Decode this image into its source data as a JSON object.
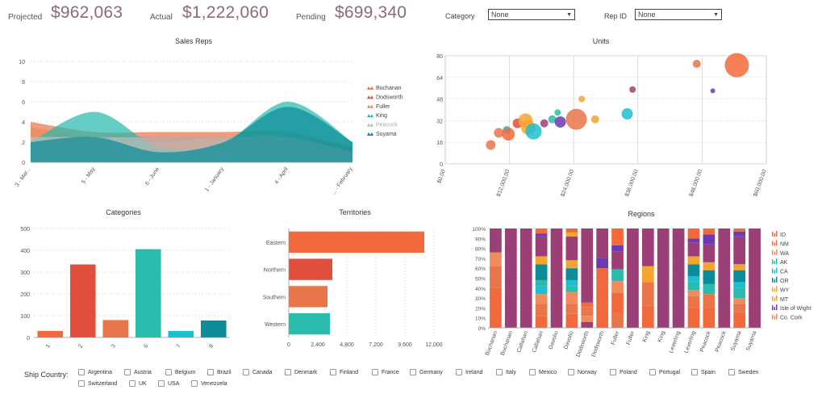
{
  "kpis": {
    "projected_label": "Projected",
    "projected_value": "$962,063",
    "actual_label": "Actual",
    "actual_value": "$1,222,060",
    "pending_label": "Pending",
    "pending_value": "$699,340"
  },
  "filters": {
    "category_label": "Category",
    "category_value": "None",
    "rep_label": "Rep ID",
    "rep_value": "None"
  },
  "colors": {
    "orange": "#f26a3b",
    "red": "#e04e3c",
    "coral": "#e8764a",
    "teal": "#2abbad",
    "cyan": "#1bbfd1",
    "darkteal": "#0c8c98",
    "plum": "#9b3f76",
    "gold": "#f6a430",
    "purple": "#6c3ab2",
    "salmon": "#f08b5e",
    "lightteal": "#55ccc1"
  },
  "chart_data": [
    {
      "type": "area",
      "title": "Sales Reps",
      "categories": [
        "3 - Mar...",
        "5 - May",
        "6 - June",
        "1 - January",
        "4 - April",
        "... - February"
      ],
      "ylim": [
        0,
        10
      ],
      "yticks": [
        0,
        2,
        4,
        6,
        8,
        10
      ],
      "series": [
        {
          "name": "Buchanan",
          "values": [
            4.0,
            3.0,
            3.0,
            3.0,
            3.0,
            1.5
          ],
          "color": "#e8764a"
        },
        {
          "name": "Dodsworth",
          "values": [
            1.5,
            2.5,
            2.5,
            2.5,
            2.5,
            1.5
          ],
          "color": "#e04e3c"
        },
        {
          "name": "Fuller",
          "values": [
            3.5,
            2.5,
            2.0,
            2.5,
            2.5,
            1.5
          ],
          "color": "#f08b5e"
        },
        {
          "name": "King",
          "values": [
            2.0,
            5.0,
            1.5,
            2.0,
            6.0,
            2.0
          ],
          "color": "#2abbad"
        },
        {
          "name": "Peacock",
          "values": [
            2.5,
            2.5,
            2.5,
            2.5,
            2.5,
            1.0
          ],
          "color": "#b8bfbd"
        },
        {
          "name": "Suyama",
          "values": [
            2.0,
            2.5,
            1.0,
            2.0,
            5.5,
            2.0
          ],
          "color": "#0c8c98"
        }
      ]
    },
    {
      "type": "scatter",
      "title": "Units",
      "xlim": [
        0,
        60000
      ],
      "ylim": [
        0,
        80
      ],
      "xticks": [
        "$0.00",
        "$12,000.00",
        "$24,000.00",
        "$36,000.00",
        "$48,000.00",
        "$60,000.00"
      ],
      "xtick_values": [
        0,
        12000,
        24000,
        36000,
        48000,
        60000
      ],
      "yticks": [
        0,
        16,
        32,
        48,
        64,
        80
      ],
      "points": [
        {
          "x": 8500,
          "y": 14,
          "r": 6,
          "color": "#e8764a"
        },
        {
          "x": 10000,
          "y": 23,
          "r": 6,
          "color": "#e8764a"
        },
        {
          "x": 11500,
          "y": 25,
          "r": 5,
          "color": "#2abbad"
        },
        {
          "x": 11800,
          "y": 22,
          "r": 8,
          "color": "#f26a3b"
        },
        {
          "x": 13500,
          "y": 30,
          "r": 6,
          "color": "#e04e3c"
        },
        {
          "x": 15000,
          "y": 32,
          "r": 9,
          "color": "#f6a430"
        },
        {
          "x": 15500,
          "y": 27,
          "r": 9,
          "color": "#f6a430"
        },
        {
          "x": 16500,
          "y": 24,
          "r": 10,
          "color": "#1bbfd1"
        },
        {
          "x": 18500,
          "y": 30,
          "r": 5,
          "color": "#9b3f76"
        },
        {
          "x": 20000,
          "y": 33,
          "r": 5,
          "color": "#2abbad"
        },
        {
          "x": 21000,
          "y": 38,
          "r": 4,
          "color": "#2abbad"
        },
        {
          "x": 21500,
          "y": 31,
          "r": 7,
          "color": "#6c3ab2"
        },
        {
          "x": 24500,
          "y": 33,
          "r": 13,
          "color": "#e8764a"
        },
        {
          "x": 25500,
          "y": 48,
          "r": 4,
          "color": "#f6a430"
        },
        {
          "x": 28000,
          "y": 33,
          "r": 5,
          "color": "#f6a430"
        },
        {
          "x": 34000,
          "y": 37,
          "r": 7,
          "color": "#1bbfd1"
        },
        {
          "x": 35000,
          "y": 55,
          "r": 4,
          "color": "#9b3f76"
        },
        {
          "x": 47000,
          "y": 74,
          "r": 5,
          "color": "#e8764a"
        },
        {
          "x": 50000,
          "y": 54,
          "r": 3,
          "color": "#6c3ab2"
        },
        {
          "x": 54500,
          "y": 73,
          "r": 15,
          "color": "#f26a3b"
        }
      ]
    },
    {
      "type": "bar",
      "title": "Categories",
      "categories": [
        "1",
        "2",
        "3",
        "6",
        "7",
        "8"
      ],
      "values": [
        30,
        335,
        80,
        405,
        30,
        78
      ],
      "colors": [
        "#f26a3b",
        "#e04e3c",
        "#e8764a",
        "#2abbad",
        "#1bbfd1",
        "#0c8c98"
      ],
      "ylim": [
        0,
        500
      ],
      "yticks": [
        0,
        100,
        200,
        300,
        400,
        500
      ]
    },
    {
      "type": "bar",
      "orientation": "horizontal",
      "title": "Territories",
      "categories": [
        "Eastern",
        "Northern",
        "Southern",
        "Western"
      ],
      "values": [
        11200,
        3600,
        3200,
        3400
      ],
      "colors": [
        "#f26a3b",
        "#e04e3c",
        "#e8764a",
        "#2abbad"
      ],
      "xlim": [
        0,
        12000
      ],
      "xticks": [
        "0",
        "2,400",
        "4,800",
        "7,200",
        "9,600",
        "12,000"
      ]
    },
    {
      "type": "bar",
      "stacked": "percent",
      "title": "Regions",
      "categories": [
        "Buchanan",
        "Buchanan",
        "Callahan",
        "Callahan",
        "Davolio",
        "Davolio",
        "Dodsworth",
        "Dodsworth",
        "Fuller",
        "Fuller",
        "King",
        "King",
        "Leverling",
        "Leverling",
        "Peacock",
        "Peacock",
        "Suyama",
        "Suyama"
      ],
      "yticks": [
        "0%",
        "10%",
        "20%",
        "30%",
        "40%",
        "50%",
        "60%",
        "70%",
        "80%",
        "90%",
        "100%"
      ],
      "legend": [
        {
          "name": "ID",
          "color": "#f26a3b"
        },
        {
          "name": "NM",
          "color": "#e8764a"
        },
        {
          "name": "WA",
          "color": "#f08b5e"
        },
        {
          "name": "AK",
          "color": "#2abbad"
        },
        {
          "name": "CA",
          "color": "#1bbfd1"
        },
        {
          "name": "OR",
          "color": "#0c8c98"
        },
        {
          "name": "WY",
          "color": "#f6a430"
        },
        {
          "name": "MT",
          "color": "#f6a430"
        },
        {
          "name": "Isle of Wight",
          "color": "#6c3ab2"
        },
        {
          "name": "Co. Cork",
          "color": "#f08b5e"
        }
      ],
      "stacks": [
        [
          {
            "c": "#f26a3b",
            "v": 40
          },
          {
            "c": "#e8764a",
            "v": 22
          },
          {
            "c": "#f08b5e",
            "v": 14
          },
          {
            "c": "#9b3f76",
            "v": 24
          }
        ],
        [
          {
            "c": "#9b3f76",
            "v": 100
          }
        ],
        [
          {
            "c": "#9b3f76",
            "v": 100
          }
        ],
        [
          {
            "c": "#f26a3b",
            "v": 12
          },
          {
            "c": "#e8764a",
            "v": 12
          },
          {
            "c": "#f08b5e",
            "v": 10
          },
          {
            "c": "#1bbfd1",
            "v": 8
          },
          {
            "c": "#2abbad",
            "v": 6
          },
          {
            "c": "#0c8c98",
            "v": 16
          },
          {
            "c": "#f6a430",
            "v": 8
          },
          {
            "c": "#9b3f76",
            "v": 20
          },
          {
            "c": "#6c3ab2",
            "v": 3
          },
          {
            "c": "#f26a3b",
            "v": 5
          }
        ],
        [
          {
            "c": "#9b3f76",
            "v": 100
          }
        ],
        [
          {
            "c": "#f26a3b",
            "v": 14
          },
          {
            "c": "#e8764a",
            "v": 10
          },
          {
            "c": "#f08b5e",
            "v": 12
          },
          {
            "c": "#2abbad",
            "v": 6
          },
          {
            "c": "#1bbfd1",
            "v": 6
          },
          {
            "c": "#0c8c98",
            "v": 12
          },
          {
            "c": "#f6a430",
            "v": 8
          },
          {
            "c": "#9b3f76",
            "v": 24
          },
          {
            "c": "#f6a430",
            "v": 4
          },
          {
            "c": "#f26a3b",
            "v": 4
          }
        ],
        [
          {
            "c": "#9b3f76",
            "v": 8
          },
          {
            "c": "#f08b5e",
            "v": 8
          },
          {
            "c": "#e8764a",
            "v": 12
          },
          {
            "c": "#f26a3b",
            "v": 6
          },
          {
            "c": "#9b3f76",
            "v": 100
          }
        ],
        [
          {
            "c": "#f26a3b",
            "v": 60
          },
          {
            "c": "#6c3ab2",
            "v": 10
          },
          {
            "c": "#9b3f76",
            "v": 30
          }
        ],
        [
          {
            "c": "#e8764a",
            "v": 15
          },
          {
            "c": "#f26a3b",
            "v": 20
          },
          {
            "c": "#f08b5e",
            "v": 12
          },
          {
            "c": "#2abbad",
            "v": 12
          },
          {
            "c": "#9b3f76",
            "v": 18
          },
          {
            "c": "#6c3ab2",
            "v": 6
          },
          {
            "c": "#f26a3b",
            "v": 17
          }
        ],
        [
          {
            "c": "#9b3f76",
            "v": 100
          }
        ],
        [
          {
            "c": "#f26a3b",
            "v": 22
          },
          {
            "c": "#e8764a",
            "v": 24
          },
          {
            "c": "#f6a430",
            "v": 8
          },
          {
            "c": "#f6a430",
            "v": 8
          },
          {
            "c": "#9b3f76",
            "v": 38
          }
        ],
        [
          {
            "c": "#9b3f76",
            "v": 100
          }
        ],
        [
          {
            "c": "#9b3f76",
            "v": 100
          }
        ],
        [
          {
            "c": "#f26a3b",
            "v": 20
          },
          {
            "c": "#e8764a",
            "v": 12
          },
          {
            "c": "#f08b5e",
            "v": 6
          },
          {
            "c": "#2abbad",
            "v": 8
          },
          {
            "c": "#1bbfd1",
            "v": 6
          },
          {
            "c": "#0c8c98",
            "v": 12
          },
          {
            "c": "#f6a430",
            "v": 8
          },
          {
            "c": "#9b3f76",
            "v": 14
          },
          {
            "c": "#6c3ab2",
            "v": 4
          },
          {
            "c": "#f26a3b",
            "v": 10
          }
        ],
        [
          {
            "c": "#f26a3b",
            "v": 20
          },
          {
            "c": "#e8764a",
            "v": 14
          },
          {
            "c": "#2abbad",
            "v": 10
          },
          {
            "c": "#0c8c98",
            "v": 14
          },
          {
            "c": "#f6a430",
            "v": 8
          },
          {
            "c": "#9b3f76",
            "v": 18
          },
          {
            "c": "#6c3ab2",
            "v": 10
          },
          {
            "c": "#f26a3b",
            "v": 6
          }
        ],
        [
          {
            "c": "#9b3f76",
            "v": 100
          }
        ],
        [
          {
            "c": "#f26a3b",
            "v": 16
          },
          {
            "c": "#e8764a",
            "v": 8
          },
          {
            "c": "#f08b5e",
            "v": 6
          },
          {
            "c": "#2abbad",
            "v": 10
          },
          {
            "c": "#1bbfd1",
            "v": 6
          },
          {
            "c": "#0c8c98",
            "v": 12
          },
          {
            "c": "#f6a430",
            "v": 6
          },
          {
            "c": "#9b3f76",
            "v": 28
          },
          {
            "c": "#6c3ab2",
            "v": 5
          },
          {
            "c": "#f26a3b",
            "v": 3
          }
        ],
        [
          {
            "c": "#9b3f76",
            "v": 100
          }
        ]
      ]
    }
  ],
  "countries": {
    "label": "Ship Country:",
    "items": [
      "Argentina",
      "Austria",
      "Belgium",
      "Brazil",
      "Canada",
      "Denmark",
      "Finland",
      "France",
      "Germany",
      "Ireland",
      "Italy",
      "Mexico",
      "Norway",
      "Poland",
      "Portugal",
      "Spain",
      "Sweden",
      "Switzerland",
      "UK",
      "USA",
      "Venezuela"
    ]
  }
}
